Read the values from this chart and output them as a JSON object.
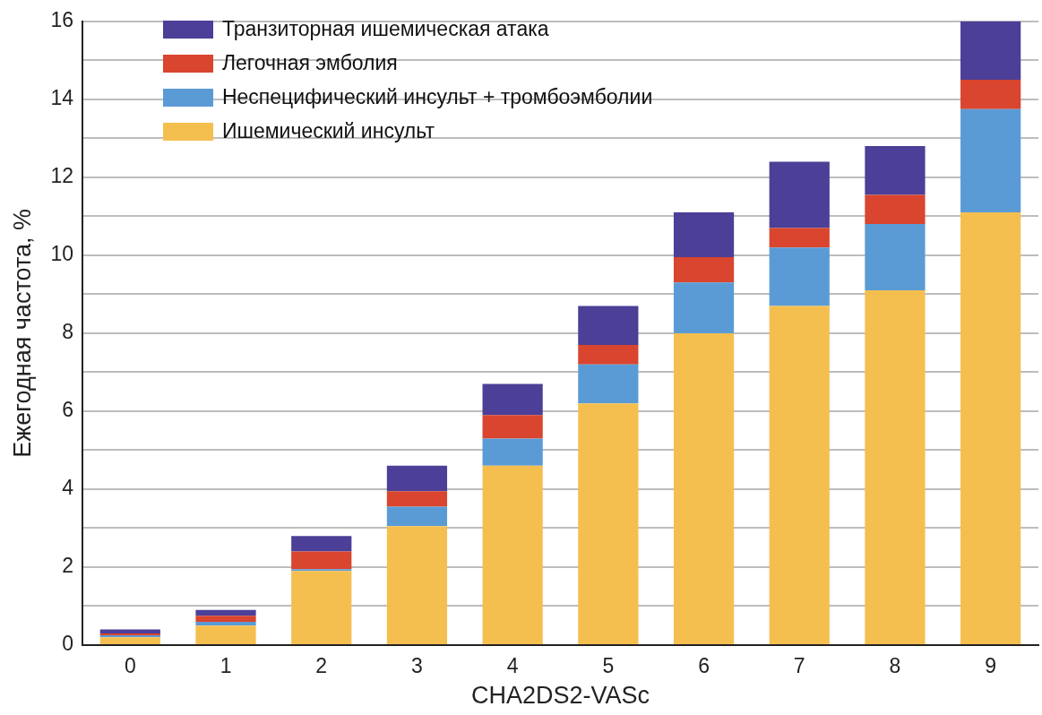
{
  "chart_data": {
    "type": "bar",
    "stacked": true,
    "xlabel": "CHA2DS2-VASc",
    "ylabel": "Ежегодная частота, %",
    "categories": [
      "0",
      "1",
      "2",
      "3",
      "4",
      "5",
      "6",
      "7",
      "8",
      "9"
    ],
    "series": [
      {
        "name": "Ишемический инсульт",
        "color": "#f5bf4f",
        "values": [
          0.2,
          0.5,
          1.9,
          3.05,
          4.6,
          6.2,
          8.0,
          8.7,
          9.1,
          11.1
        ]
      },
      {
        "name": "Неспецифический инсульт + тромбоэмболии",
        "color": "#5b9bd5",
        "values": [
          0.05,
          0.1,
          0.05,
          0.5,
          0.7,
          1.0,
          1.3,
          1.5,
          1.7,
          2.65
        ]
      },
      {
        "name": "Легочная эмболия",
        "color": "#d9452e",
        "values": [
          0.05,
          0.15,
          0.45,
          0.4,
          0.6,
          0.5,
          0.65,
          0.5,
          0.75,
          0.75
        ]
      },
      {
        "name": "Транзиторная ишемическая атака",
        "color": "#4b3f97",
        "values": [
          0.1,
          0.15,
          0.4,
          0.65,
          0.8,
          1.0,
          1.15,
          1.7,
          1.25,
          1.5
        ]
      }
    ],
    "ylim": [
      0,
      16
    ],
    "yticks": [
      0,
      {
        "value": 1,
        "label": null
      },
      2,
      {
        "value": 3,
        "label": null
      },
      4,
      {
        "value": 5,
        "label": null
      },
      6,
      {
        "value": 7,
        "label": null
      },
      8,
      {
        "value": 9,
        "label": null
      },
      10,
      {
        "value": 11,
        "label": null
      },
      12,
      {
        "value": 13,
        "label": null
      },
      14,
      {
        "value": 15,
        "label": null
      },
      16
    ],
    "grid": "y",
    "legend": "top left"
  }
}
